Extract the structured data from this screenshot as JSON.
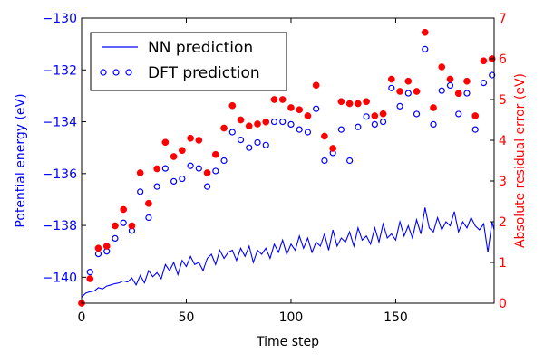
{
  "chart_data": {
    "type": "line+scatter",
    "xlabel": "Time step",
    "ylabel_left": "Potential energy (eV)",
    "ylabel_right": "Absolute residual error (eV)",
    "xlim": [
      0,
      197
    ],
    "ylim_left": [
      -141,
      -130
    ],
    "ylim_right": [
      0,
      7
    ],
    "x_ticks": [
      0,
      50,
      100,
      150
    ],
    "y_left_ticks": [
      -140,
      -138,
      -136,
      -134,
      -132,
      -130
    ],
    "y_right_ticks": [
      0,
      1,
      2,
      3,
      4,
      5,
      6,
      7
    ],
    "colors": {
      "left": "#0000ff",
      "right": "#ff0000",
      "axes": "#000000"
    },
    "legend": [
      {
        "label": "NN prediction",
        "style": "line"
      },
      {
        "label": "DFT prediction",
        "style": "markers"
      }
    ],
    "series": [
      {
        "name": "DFT prediction",
        "axis": "left",
        "style": "open-circle",
        "x": [
          4,
          8,
          12,
          16,
          20,
          24,
          28,
          32,
          36,
          40,
          44,
          48,
          52,
          56,
          60,
          64,
          68,
          72,
          76,
          80,
          84,
          88,
          92,
          96,
          100,
          104,
          108,
          112,
          116,
          120,
          124,
          128,
          132,
          136,
          140,
          144,
          148,
          152,
          156,
          160,
          164,
          168,
          172,
          176,
          180,
          184,
          188,
          192,
          196
        ],
        "y": [
          -139.8,
          -139.1,
          -139.0,
          -138.5,
          -137.9,
          -138.2,
          -136.7,
          -137.7,
          -136.5,
          -135.8,
          -136.3,
          -136.2,
          -135.7,
          -135.8,
          -136.5,
          -135.9,
          -135.5,
          -134.4,
          -134.7,
          -135.0,
          -134.8,
          -134.9,
          -134.0,
          -134.0,
          -134.1,
          -134.3,
          -134.4,
          -133.5,
          -135.5,
          -135.2,
          -134.3,
          -135.5,
          -134.2,
          -133.8,
          -134.1,
          -134.0,
          -132.7,
          -133.4,
          -132.9,
          -133.7,
          -131.2,
          -134.1,
          -132.8,
          -132.6,
          -133.7,
          -132.9,
          -134.3,
          -132.5,
          -132.2
        ]
      },
      {
        "name": "Absolute residual error",
        "axis": "right",
        "style": "filled-circle",
        "x": [
          0,
          4,
          8,
          12,
          16,
          20,
          24,
          28,
          32,
          36,
          40,
          44,
          48,
          52,
          56,
          60,
          64,
          68,
          72,
          76,
          80,
          84,
          88,
          92,
          96,
          100,
          104,
          108,
          112,
          116,
          120,
          124,
          128,
          132,
          136,
          140,
          144,
          148,
          152,
          156,
          160,
          164,
          168,
          172,
          176,
          180,
          184,
          188,
          192,
          196
        ],
        "y": [
          0.0,
          0.6,
          1.35,
          1.4,
          1.9,
          2.3,
          1.9,
          3.2,
          2.45,
          3.3,
          3.95,
          3.6,
          3.75,
          4.05,
          4.0,
          3.2,
          3.65,
          4.3,
          4.85,
          4.5,
          4.35,
          4.4,
          4.45,
          5.0,
          5.0,
          4.8,
          4.75,
          4.6,
          5.35,
          4.1,
          3.8,
          4.95,
          4.9,
          4.9,
          4.95,
          4.6,
          4.65,
          5.5,
          5.2,
          5.45,
          5.2,
          6.65,
          4.8,
          5.8,
          5.5,
          5.15,
          5.45,
          4.6,
          5.95,
          6.0
        ]
      },
      {
        "name": "NN prediction",
        "axis": "right",
        "style": "line",
        "x": [
          0,
          2,
          4,
          6,
          8,
          10,
          12,
          14,
          16,
          18,
          20,
          22,
          24,
          26,
          28,
          30,
          32,
          34,
          36,
          38,
          40,
          42,
          44,
          46,
          48,
          50,
          52,
          54,
          56,
          58,
          60,
          62,
          64,
          66,
          68,
          70,
          72,
          74,
          76,
          78,
          80,
          82,
          84,
          86,
          88,
          90,
          92,
          94,
          96,
          98,
          100,
          102,
          104,
          106,
          108,
          110,
          112,
          114,
          116,
          118,
          120,
          122,
          124,
          126,
          128,
          130,
          132,
          134,
          136,
          138,
          140,
          142,
          144,
          146,
          148,
          150,
          152,
          154,
          156,
          158,
          160,
          162,
          164,
          166,
          168,
          170,
          172,
          174,
          176,
          178,
          180,
          182,
          184,
          186,
          188,
          190,
          192,
          194,
          196,
          197
        ],
        "y": [
          0.15,
          0.25,
          0.28,
          0.3,
          0.38,
          0.35,
          0.42,
          0.45,
          0.48,
          0.5,
          0.55,
          0.52,
          0.62,
          0.45,
          0.68,
          0.5,
          0.8,
          0.65,
          0.75,
          0.6,
          0.95,
          0.8,
          1.0,
          0.7,
          1.05,
          0.9,
          1.15,
          0.95,
          1.0,
          0.8,
          1.1,
          1.2,
          0.95,
          1.3,
          1.1,
          1.25,
          1.3,
          1.05,
          1.35,
          1.15,
          1.4,
          1.0,
          1.3,
          1.2,
          1.35,
          1.1,
          1.45,
          1.25,
          1.55,
          1.2,
          1.45,
          1.3,
          1.65,
          1.35,
          1.6,
          1.25,
          1.5,
          1.4,
          1.7,
          1.3,
          1.8,
          1.4,
          1.6,
          1.5,
          1.75,
          1.4,
          1.85,
          1.55,
          1.65,
          1.45,
          1.85,
          1.5,
          1.95,
          1.6,
          1.7,
          1.55,
          2.0,
          1.65,
          1.9,
          1.6,
          2.05,
          1.7,
          2.35,
          1.85,
          1.75,
          2.1,
          1.8,
          2.0,
          1.9,
          2.25,
          1.75,
          2.0,
          1.85,
          2.1,
          1.9,
          1.8,
          1.95,
          1.25,
          2.0,
          1.8
        ]
      }
    ]
  }
}
